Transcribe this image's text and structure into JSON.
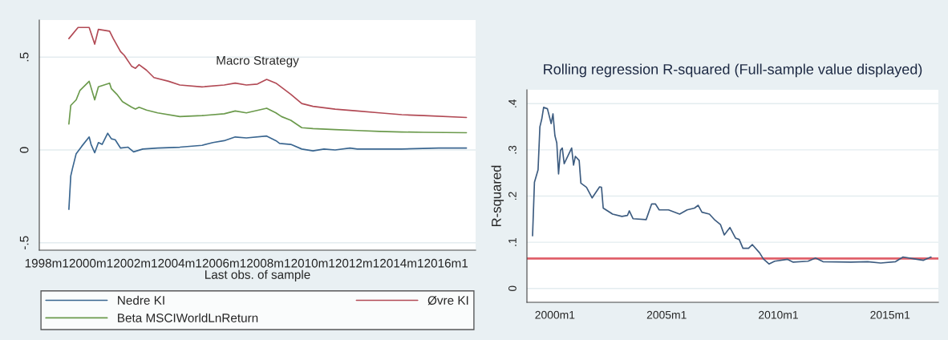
{
  "chart_data": [
    {
      "type": "line",
      "xlabel": "Last obs. of sample",
      "annotations": [
        "Macro Strategy"
      ],
      "grid": "y",
      "legend": "bottom",
      "xlim": [
        "1997-09",
        "2017-05"
      ],
      "ylim": [
        -0.54,
        0.7
      ],
      "xticks": [
        {
          "value": "1998-01",
          "label": "1998m1"
        },
        {
          "value": "2000-01",
          "label": "2000m1"
        },
        {
          "value": "2002-01",
          "label": "2002m1"
        },
        {
          "value": "2004-01",
          "label": "2004m1"
        },
        {
          "value": "2006-01",
          "label": "2006m1"
        },
        {
          "value": "2008-01",
          "label": "2008m1"
        },
        {
          "value": "2010-01",
          "label": "2010m1"
        },
        {
          "value": "2012-01",
          "label": "2012m1"
        },
        {
          "value": "2014-01",
          "label": "2014m1"
        },
        {
          "value": "2016-01",
          "label": "2016m1"
        }
      ],
      "yticks": [
        {
          "value": -0.5,
          "label": "-.5"
        },
        0,
        {
          "value": 0.5,
          "label": ".5"
        }
      ],
      "series": [
        {
          "name": "Nedre KI",
          "color": "#3a6690",
          "x": [
            "1999-01",
            "1999-02",
            "1999-03",
            "1999-05",
            "1999-08",
            "1999-12",
            "2000-01",
            "2000-03",
            "2000-05",
            "2000-07",
            "2000-10",
            "2000-12",
            "2001-02",
            "2001-05",
            "2001-09",
            "2001-12",
            "2002-05",
            "2003-01",
            "2004-01",
            "2005-01",
            "2005-07",
            "2006-01",
            "2006-07",
            "2007-01",
            "2007-12",
            "2008-05",
            "2008-07",
            "2009-01",
            "2009-07",
            "2010-01",
            "2010-07",
            "2011-01",
            "2011-09",
            "2012-01",
            "2014-01",
            "2015-09",
            "2016-12"
          ],
          "values": [
            -0.32,
            -0.14,
            -0.1,
            -0.02,
            0.02,
            0.07,
            0.03,
            -0.015,
            0.04,
            0.03,
            0.09,
            0.06,
            0.055,
            0.01,
            0.015,
            -0.01,
            0.005,
            0.01,
            0.015,
            0.025,
            0.04,
            0.05,
            0.07,
            0.065,
            0.075,
            0.05,
            0.035,
            0.03,
            0.005,
            -0.005,
            0.005,
            0.0,
            0.01,
            0.005,
            0.005,
            0.01,
            0.01
          ]
        },
        {
          "name": "Øvre KI",
          "color": "#b24a55",
          "x": [
            "1999-01",
            "1999-06",
            "1999-12",
            "2000-03",
            "2000-05",
            "2000-11",
            "2001-01",
            "2001-05",
            "2001-07",
            "2001-11",
            "2002-01",
            "2002-03",
            "2002-07",
            "2002-11",
            "2003-07",
            "2004-01",
            "2005-01",
            "2006-01",
            "2006-07",
            "2007-01",
            "2007-07",
            "2007-12",
            "2008-05",
            "2008-09",
            "2009-01",
            "2009-07",
            "2010-01",
            "2011-01",
            "2012-01",
            "2013-01",
            "2014-01",
            "2015-01",
            "2016-12"
          ],
          "values": [
            0.6,
            0.66,
            0.66,
            0.57,
            0.65,
            0.64,
            0.6,
            0.53,
            0.51,
            0.45,
            0.44,
            0.46,
            0.43,
            0.39,
            0.37,
            0.35,
            0.34,
            0.35,
            0.36,
            0.35,
            0.355,
            0.38,
            0.36,
            0.33,
            0.3,
            0.25,
            0.235,
            0.22,
            0.21,
            0.2,
            0.19,
            0.185,
            0.175
          ]
        },
        {
          "name": "Beta MSCIWorldLnReturn",
          "color": "#6b9a4c",
          "x": [
            "1999-01",
            "1999-02",
            "1999-05",
            "1999-07",
            "1999-12",
            "2000-03",
            "2000-05",
            "2000-11",
            "2000-12",
            "2001-03",
            "2001-06",
            "2001-11",
            "2002-01",
            "2002-03",
            "2002-07",
            "2003-01",
            "2004-01",
            "2005-01",
            "2006-01",
            "2006-07",
            "2007-01",
            "2007-12",
            "2008-05",
            "2008-08",
            "2009-01",
            "2009-07",
            "2010-01",
            "2011-01",
            "2012-01",
            "2013-01",
            "2014-01",
            "2015-01",
            "2016-12"
          ],
          "values": [
            0.14,
            0.24,
            0.27,
            0.32,
            0.37,
            0.27,
            0.34,
            0.36,
            0.33,
            0.3,
            0.26,
            0.23,
            0.22,
            0.23,
            0.215,
            0.2,
            0.18,
            0.185,
            0.195,
            0.21,
            0.2,
            0.225,
            0.2,
            0.18,
            0.16,
            0.12,
            0.115,
            0.11,
            0.105,
            0.1,
            0.097,
            0.095,
            0.093
          ]
        }
      ]
    },
    {
      "type": "line",
      "title": "Rolling regression R-squared (Full-sample value displayed)",
      "ylabel": "R-squared",
      "grid": "y",
      "xlim": [
        "1998-10",
        "2017-03"
      ],
      "ylim": [
        -0.03,
        0.43
      ],
      "xticks": [
        {
          "value": "2000-01",
          "label": "2000m1"
        },
        {
          "value": "2005-01",
          "label": "2005m1"
        },
        {
          "value": "2010-01",
          "label": "2010m1"
        },
        {
          "value": "2015-01",
          "label": "2015m1"
        }
      ],
      "yticks": [
        0,
        {
          "value": 0.1,
          "label": ".1"
        },
        {
          "value": 0.2,
          "label": ".2"
        },
        {
          "value": 0.3,
          "label": ".3"
        },
        {
          "value": 0.4,
          "label": ".4"
        }
      ],
      "ref_lines": [
        {
          "axis": "y",
          "value": 0.065,
          "color": "#e0606a"
        }
      ],
      "series": [
        {
          "color": "#3d5c80",
          "x": [
            "1999-01",
            "1999-02",
            "1999-04",
            "1999-05",
            "1999-06",
            "1999-07",
            "1999-09",
            "1999-11",
            "1999-12",
            "2000-01",
            "2000-02",
            "2000-03",
            "2000-04",
            "2000-05",
            "2000-06",
            "2000-10",
            "2000-11",
            "2000-12",
            "2001-02",
            "2001-03",
            "2001-06",
            "2001-09",
            "2002-01",
            "2002-02",
            "2002-03",
            "2002-08",
            "2003-01",
            "2003-04",
            "2003-05",
            "2003-07",
            "2004-02",
            "2004-05",
            "2004-07",
            "2004-09",
            "2005-02",
            "2005-08",
            "2005-12",
            "2006-04",
            "2006-06",
            "2006-08",
            "2006-12",
            "2007-03",
            "2007-06",
            "2007-08",
            "2007-11",
            "2008-02",
            "2008-04",
            "2008-06",
            "2008-09",
            "2008-11",
            "2009-03",
            "2009-05",
            "2009-08",
            "2009-11",
            "2010-06",
            "2010-09",
            "2011-05",
            "2011-09",
            "2012-01",
            "2013-04",
            "2014-01",
            "2014-08",
            "2015-04",
            "2015-08",
            "2016-02",
            "2016-07",
            "2016-11"
          ],
          "values": [
            0.114,
            0.23,
            0.257,
            0.35,
            0.367,
            0.392,
            0.389,
            0.357,
            0.378,
            0.331,
            0.315,
            0.248,
            0.299,
            0.304,
            0.27,
            0.304,
            0.267,
            0.286,
            0.277,
            0.228,
            0.219,
            0.196,
            0.22,
            0.219,
            0.174,
            0.161,
            0.156,
            0.158,
            0.168,
            0.151,
            0.149,
            0.183,
            0.183,
            0.17,
            0.17,
            0.161,
            0.17,
            0.174,
            0.18,
            0.165,
            0.161,
            0.148,
            0.138,
            0.116,
            0.132,
            0.109,
            0.106,
            0.087,
            0.087,
            0.095,
            0.077,
            0.064,
            0.053,
            0.059,
            0.063,
            0.057,
            0.059,
            0.066,
            0.058,
            0.057,
            0.058,
            0.055,
            0.058,
            0.068,
            0.064,
            0.061,
            0.068
          ]
        }
      ]
    }
  ]
}
